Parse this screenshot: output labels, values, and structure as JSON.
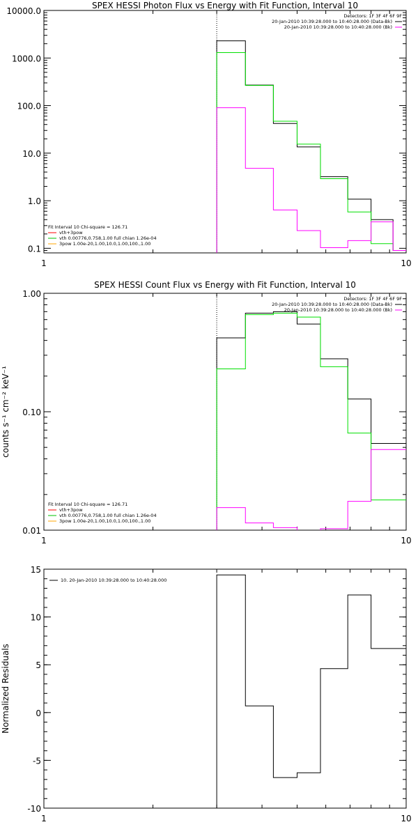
{
  "chart_data": [
    {
      "id": "photon",
      "type": "line",
      "title": "SPEX HESSI Photon Flux vs Energy with Fit Function, Interval 10",
      "xscale": "log",
      "yscale": "log",
      "xlim": [
        1,
        10
      ],
      "ylim": [
        0.08,
        10000
      ],
      "xticks": [
        {
          "v": 1,
          "label": "1"
        },
        {
          "v": 10,
          "label": "10"
        }
      ],
      "yticks": [
        {
          "v": 0.1,
          "label": "0.1"
        },
        {
          "v": 1,
          "label": "1.0"
        },
        {
          "v": 10,
          "label": "10.0"
        },
        {
          "v": 100,
          "label": "100.0"
        },
        {
          "v": 1000,
          "label": "1000.0"
        },
        {
          "v": 10000,
          "label": "10000.0"
        }
      ],
      "vline": 3.0,
      "legend_topright": {
        "placement": "top-right",
        "header": "Detectors: 1F 3F 4F 6F 9F",
        "entries": [
          {
            "text": "20-Jan-2010 10:39:28.000 to 10:40:28.000 (Data-Bk)",
            "color": "#000000"
          },
          {
            "text": "20-Jan-2010 10:39:28.000 to 10:40:28.000 (Bk)",
            "color": "#ff00ff"
          }
        ]
      },
      "legend_bottomleft": {
        "placement": "bottom-left",
        "header": "Fit Interval 10   Chi-square = 126.71",
        "entries": [
          {
            "text": "vth+3pow",
            "color": "#ff0000"
          },
          {
            "text": "vth 0.00776,0.758,1.00   full chian 1.26e-04",
            "color": "#00c000"
          },
          {
            "text": "3pow 1.00e-20,1.00,10.0,1.00,100.,1.00",
            "color": "#ffa500"
          }
        ]
      },
      "edges": [
        3.0,
        3.6,
        4.3,
        5.0,
        5.8,
        6.9,
        8.0,
        9.2,
        10.0
      ],
      "series": [
        {
          "color": "#000000",
          "values": [
            2300,
            270,
            42,
            13.5,
            3.2,
            1.08,
            0.4,
            0.09
          ]
        },
        {
          "color": "#00e000",
          "values": [
            1300,
            265,
            47,
            15.5,
            2.9,
            0.58,
            0.125,
            0.09
          ]
        },
        {
          "color": "#ff00ff",
          "values": [
            90,
            4.8,
            0.64,
            0.235,
            0.103,
            0.145,
            0.36,
            0.09
          ]
        }
      ]
    },
    {
      "id": "count",
      "type": "line",
      "title": "SPEX HESSI Count Flux vs Energy with Fit Function, Interval 10",
      "ylabel": "counts s⁻¹ cm⁻² keV⁻¹",
      "xscale": "log",
      "yscale": "log",
      "xlim": [
        1,
        10
      ],
      "ylim": [
        0.01,
        1.0
      ],
      "xticks": [
        {
          "v": 1,
          "label": "1"
        },
        {
          "v": 10,
          "label": "10"
        }
      ],
      "yticks": [
        {
          "v": 0.01,
          "label": "0.01"
        },
        {
          "v": 0.1,
          "label": "0.10"
        },
        {
          "v": 1,
          "label": "1.00"
        }
      ],
      "vline": 3.0,
      "legend_topright": {
        "placement": "top-right",
        "header": "Detectors: 1F 3F 4F 6F 9F",
        "entries": [
          {
            "text": "20-Jan-2010 10:39:28.000 to 10:40:28.000 (Data-Bk)",
            "color": "#000000"
          },
          {
            "text": "20-Jan-2010 10:39:28.000 to 10:40:28.000 (Bk)",
            "color": "#ff00ff"
          }
        ]
      },
      "legend_bottomleft": {
        "placement": "bottom-left",
        "header": "Fit Interval 10   Chi-square = 126.71",
        "entries": [
          {
            "text": "vth+3pow",
            "color": "#ff0000"
          },
          {
            "text": "vth 0.00776,0.758,1.00   full chian 1.26e-04",
            "color": "#00c000"
          },
          {
            "text": "3pow 1.00e-20,1.00,10.0,1.00,100.,1.00",
            "color": "#ffa500"
          }
        ]
      },
      "edges": [
        3.0,
        3.6,
        4.3,
        5.0,
        5.8,
        6.9,
        8.0,
        9.2,
        10.0
      ],
      "series": [
        {
          "color": "#000000",
          "values": [
            0.42,
            0.68,
            0.7,
            0.55,
            0.28,
            0.128,
            0.054,
            0.054
          ]
        },
        {
          "color": "#00e000",
          "values": [
            0.23,
            0.66,
            0.68,
            0.63,
            0.24,
            0.066,
            0.018,
            0.018
          ]
        },
        {
          "color": "#ff00ff",
          "values": [
            0.0155,
            0.0115,
            0.0105,
            0.0098,
            0.0103,
            0.0175,
            0.048,
            0.048
          ]
        }
      ]
    },
    {
      "id": "resid",
      "type": "line",
      "ylabel": "Normalized Residuals",
      "xscale": "log",
      "yscale": "linear",
      "xlim": [
        1,
        10
      ],
      "ylim": [
        -10,
        15
      ],
      "xticks": [
        {
          "v": 1,
          "label": "1"
        },
        {
          "v": 10,
          "label": "10"
        }
      ],
      "yticks": [
        {
          "v": -10,
          "label": "-10"
        },
        {
          "v": -5,
          "label": "-5"
        },
        {
          "v": 0,
          "label": "0"
        },
        {
          "v": 5,
          "label": "5"
        },
        {
          "v": 10,
          "label": "10"
        },
        {
          "v": 15,
          "label": "15"
        }
      ],
      "legend_topleft": {
        "placement": "top-left",
        "entries": [
          {
            "text": "10. 20-Jan-2010 10:39:28.000 to 10:40:28.000",
            "color": "#000000"
          }
        ]
      },
      "edges": [
        3.0,
        3.6,
        4.3,
        5.0,
        5.8,
        6.9,
        8.0,
        9.2,
        10.0
      ],
      "series": [
        {
          "color": "#000000",
          "values": [
            14.4,
            0.7,
            -6.8,
            -6.3,
            4.6,
            12.3,
            6.7,
            6.7
          ]
        }
      ]
    }
  ]
}
